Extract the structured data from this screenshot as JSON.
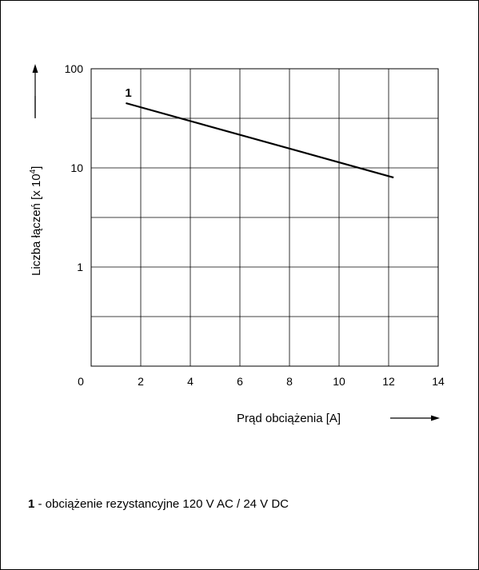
{
  "chart_data": {
    "type": "line",
    "x_ticks": [
      "0",
      "2",
      "4",
      "6",
      "8",
      "10",
      "12",
      "14"
    ],
    "y_ticks": [
      "1",
      "10",
      "100"
    ],
    "xlim": [
      0,
      14
    ],
    "ylim": [
      0.1,
      100
    ],
    "y_scale": "log",
    "grid": true,
    "xlabel": "Prąd obciążenia [A]",
    "ylabel_main": "Liczba łączeń [x 10",
    "ylabel_exp": "4",
    "ylabel_end": "]",
    "series": [
      {
        "label": "1",
        "x": [
          1.4,
          12.2
        ],
        "y": [
          45,
          8
        ]
      }
    ],
    "legend": {
      "number": "1",
      "text": " - obciążenie rezystancyjne 120 V AC / 24 V DC"
    },
    "colors": {
      "line": "#000000",
      "grid": "#000000"
    }
  }
}
